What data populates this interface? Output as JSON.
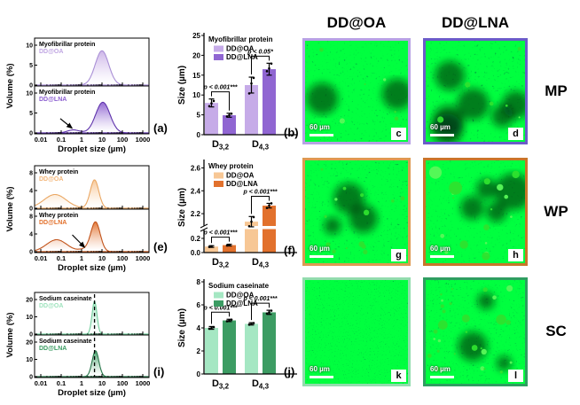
{
  "micro": {
    "col_headers": [
      "DD@OA",
      "DD@LNA"
    ],
    "row_labels": [
      "MP",
      "WP",
      "SC"
    ],
    "items": [
      {
        "letter": "c",
        "row": "MP",
        "col": "DD@OA",
        "border_color": "#b7a2e4",
        "scale_label": "60 µm",
        "noise_freq": 0.5,
        "seed": 7,
        "droplet_count": 6,
        "droplet_rmax": 2.5,
        "dark_patches": 2
      },
      {
        "letter": "d",
        "row": "MP",
        "col": "DD@LNA",
        "border_color": "#6b5cc8",
        "scale_label": "60 µm",
        "noise_freq": 0.42,
        "seed": 11,
        "droplet_count": 6,
        "droplet_rmax": 3,
        "dark_patches": 6
      },
      {
        "letter": "g",
        "row": "WP",
        "col": "DD@OA",
        "border_color": "#dd9a52",
        "scale_label": "60 µm",
        "noise_freq": 0.5,
        "seed": 3,
        "droplet_count": 14,
        "droplet_rmax": 6,
        "dark_patches": 3
      },
      {
        "letter": "h",
        "row": "WP",
        "col": "DD@LNA",
        "border_color": "#c8762a",
        "scale_label": "60 µm",
        "noise_freq": 0.5,
        "seed": 5,
        "droplet_count": 17,
        "droplet_rmax": 7,
        "dark_patches": 4
      },
      {
        "letter": "k",
        "row": "SC",
        "col": "DD@OA",
        "border_color": "#93dcae",
        "scale_label": "60 µm",
        "noise_freq": 0.85,
        "seed": 9,
        "droplet_count": 0,
        "droplet_rmax": 0,
        "dark_patches": 0
      },
      {
        "letter": "l",
        "row": "SC",
        "col": "DD@LNA",
        "border_color": "#2f9e61",
        "scale_label": "60 µm",
        "noise_freq": 0.55,
        "seed": 13,
        "droplet_count": 30,
        "droplet_rmax": 6,
        "dark_patches": 3
      }
    ]
  },
  "chart_data": {
    "distribution_panels": [
      {
        "panel_letter": "(a)",
        "ylabel": "Volume (%)",
        "xlabel": "Droplet size (µm)",
        "xtick_labels": [
          "0.01",
          "0.1",
          "1",
          "10",
          "100",
          "1000"
        ],
        "subplots": [
          {
            "title": "Myofibrillar protein",
            "sample": "DD@OA",
            "sample_color": "#c0a6e2",
            "fill": "#cab1e7",
            "line": "#a98fd6",
            "ymax": 10,
            "yticks": [
              "0",
              "5",
              "10"
            ],
            "peaks": [
              {
                "center_um": 10,
                "height_pct": 8.6,
                "width_dec": 0.33
              }
            ]
          },
          {
            "title": "Myofibrillar protein",
            "sample": "DD@LNA",
            "sample_color": "#8c5fd0",
            "fill": "#8c5fd0",
            "line": "#5e33ab",
            "ymax": 10,
            "yticks": [
              "0",
              "5",
              "10"
            ],
            "peaks": [
              {
                "center_um": 0.4,
                "height_pct": 0.75,
                "width_dec": 0.3
              },
              {
                "center_um": 11,
                "height_pct": 7.7,
                "width_dec": 0.35
              }
            ],
            "arrow": {
              "from_um": 0.09,
              "from_pct": 3.6,
              "to_um": 0.34,
              "to_pct": 1.2
            }
          }
        ]
      },
      {
        "panel_letter": "(e)",
        "ylabel": "Volume (%)",
        "xlabel": "Droplet size (µm)",
        "xtick_labels": [
          "0.01",
          "0.1",
          "1",
          "10",
          "100",
          "1000"
        ],
        "subplots": [
          {
            "title": "Whey protein",
            "sample": "DD@OA",
            "sample_color": "#f3b679",
            "fill": "#f7c795",
            "line": "#eaa763",
            "ymax": 8,
            "yticks": [
              "0",
              "4",
              "8"
            ],
            "peaks": [
              {
                "center_um": 0.05,
                "height_pct": 3.1,
                "width_dec": 0.55
              },
              {
                "center_um": 4.3,
                "height_pct": 6.4,
                "width_dec": 0.21
              }
            ]
          },
          {
            "title": "Whey protein",
            "sample": "DD@LNA",
            "sample_color": "#e2712d",
            "fill": "#e2712d",
            "line": "#c2531a",
            "ymax": 8,
            "yticks": [
              "0",
              "4",
              "8"
            ],
            "peaks": [
              {
                "center_um": 0.06,
                "height_pct": 2.7,
                "width_dec": 0.5
              },
              {
                "center_um": 1.3,
                "height_pct": 0.5,
                "width_dec": 0.25
              },
              {
                "center_um": 4.8,
                "height_pct": 6.7,
                "width_dec": 0.23
              }
            ],
            "arrow": {
              "from_um": 0.35,
              "from_pct": 3.8,
              "to_um": 1.4,
              "to_pct": 1.0
            }
          }
        ]
      },
      {
        "panel_letter": "(i)",
        "ylabel": "Volume (%)",
        "xlabel": "Droplet size (µm)",
        "xtick_labels": [
          "0.01",
          "0.1",
          "1",
          "10",
          "100",
          "1000"
        ],
        "dashed_line_um": 4.3,
        "subplots": [
          {
            "title": "Sodium caseinate",
            "sample": "DD@OA",
            "sample_color": "#9fe3bd",
            "fill": "#a5e7c3",
            "line": "#74cf9e",
            "ymax": 20,
            "yticks": [
              "0",
              "10",
              "20"
            ],
            "peaks": [
              {
                "center_um": 4.3,
                "height_pct": 19,
                "width_dec": 0.12
              }
            ]
          },
          {
            "title": "Sodium caseinate",
            "sample": "DD@LNA",
            "sample_color": "#3c9c63",
            "fill": "#3c9c63",
            "line": "#27764a",
            "ymax": 20,
            "yticks": [
              "0",
              "10",
              "20"
            ],
            "peaks": [
              {
                "center_um": 4.8,
                "height_pct": 15,
                "width_dec": 0.165
              }
            ]
          }
        ]
      }
    ],
    "bar_panels": [
      {
        "panel_letter": "(b)",
        "title": "Myofibrillar protein",
        "ylabel": "Size (µm)",
        "legend": [
          {
            "label": "DD@OA",
            "color": "#c6abe8"
          },
          {
            "label": "DD@LNA",
            "color": "#9066d2"
          }
        ],
        "ytick_labels": [
          "0",
          "5",
          "10",
          "15",
          "20",
          "25"
        ],
        "ytick_values": [
          0,
          5,
          10,
          15,
          20,
          25
        ],
        "ymax": 25,
        "categories": [
          {
            "base": "D",
            "sub": "3,2"
          },
          {
            "base": "D",
            "sub": "4,3"
          }
        ],
        "groups": [
          {
            "significance": "p < 0.001***",
            "bars": [
              {
                "series": "DD@OA",
                "value": 8.0,
                "err": 1.0,
                "points": [
                  7.2,
                  7.9,
                  8.5
                ]
              },
              {
                "series": "DD@LNA",
                "value": 4.9,
                "err": 0.5,
                "points": [
                  4.6,
                  4.9,
                  5.3
                ]
              }
            ]
          },
          {
            "significance": "p < 0.05*",
            "bars": [
              {
                "series": "DD@OA",
                "value": 12.5,
                "err": 2.0,
                "points": [
                  10.4,
                  12.9,
                  14.3
                ]
              },
              {
                "series": "DD@LNA",
                "value": 16.5,
                "err": 1.5,
                "points": [
                  16.0,
                  16.7,
                  17.9
                ]
              }
            ]
          }
        ]
      },
      {
        "panel_letter": "(f)",
        "title": "Whey protein",
        "ylabel": "Size (µm)",
        "legend": [
          {
            "label": "DD@OA",
            "color": "#f7c795"
          },
          {
            "label": "DD@LNA",
            "color": "#e2712d"
          }
        ],
        "broken_axis": {
          "lower_max": 0.3,
          "upper_min": 2.1,
          "upper_max": 2.65,
          "lower_tick_labels": [
            "0.0",
            "0.2"
          ],
          "lower_tick_values": [
            0,
            0.2
          ],
          "upper_tick_labels": [
            "2.2",
            "2.4",
            "2.6"
          ],
          "upper_tick_values": [
            2.2,
            2.4,
            2.6
          ]
        },
        "categories": [
          {
            "base": "D",
            "sub": "3,2"
          },
          {
            "base": "D",
            "sub": "4,3"
          }
        ],
        "groups": [
          {
            "significance": "p < 0.001***",
            "bars": [
              {
                "series": "DD@OA",
                "value": 0.085,
                "err": 0.012,
                "points": [
                  0.08,
                  0.09
                ]
              },
              {
                "series": "DD@LNA",
                "value": 0.105,
                "err": 0.012,
                "points": [
                  0.1,
                  0.11
                ]
              }
            ]
          },
          {
            "significance": "p < 0.001***",
            "bars": [
              {
                "series": "DD@OA",
                "value": 2.13,
                "err": 0.045,
                "points": [
                  2.09,
                  2.13,
                  2.17
                ]
              },
              {
                "series": "DD@LNA",
                "value": 2.27,
                "err": 0.02,
                "points": [
                  2.25,
                  2.27,
                  2.29
                ]
              }
            ]
          }
        ]
      },
      {
        "panel_letter": "(j)",
        "title": "Sodium caseinate",
        "ylabel": "Size (µm)",
        "legend": [
          {
            "label": "DD@OA",
            "color": "#a5e7c3"
          },
          {
            "label": "DD@LNA",
            "color": "#3c9c63"
          }
        ],
        "ytick_labels": [
          "0",
          "2",
          "4",
          "6",
          "8"
        ],
        "ytick_values": [
          0,
          2,
          4,
          6,
          8
        ],
        "ymax": 8,
        "categories": [
          {
            "base": "D",
            "sub": "3,2"
          },
          {
            "base": "D",
            "sub": "4,3"
          }
        ],
        "groups": [
          {
            "significance": "p < 0.001***",
            "bars": [
              {
                "series": "DD@OA",
                "value": 4.0,
                "err": 0.12,
                "points": [
                  3.93,
                  4.0,
                  4.07
                ]
              },
              {
                "series": "DD@LNA",
                "value": 4.65,
                "err": 0.1,
                "points": [
                  4.58,
                  4.65,
                  4.72
                ]
              }
            ]
          },
          {
            "significance": "p < 0.001***",
            "bars": [
              {
                "series": "DD@OA",
                "value": 4.35,
                "err": 0.1,
                "points": [
                  4.28,
                  4.35,
                  4.42
                ]
              },
              {
                "series": "DD@LNA",
                "value": 5.35,
                "err": 0.18,
                "points": [
                  5.25,
                  5.35,
                  5.5
                ]
              }
            ]
          }
        ]
      }
    ]
  }
}
